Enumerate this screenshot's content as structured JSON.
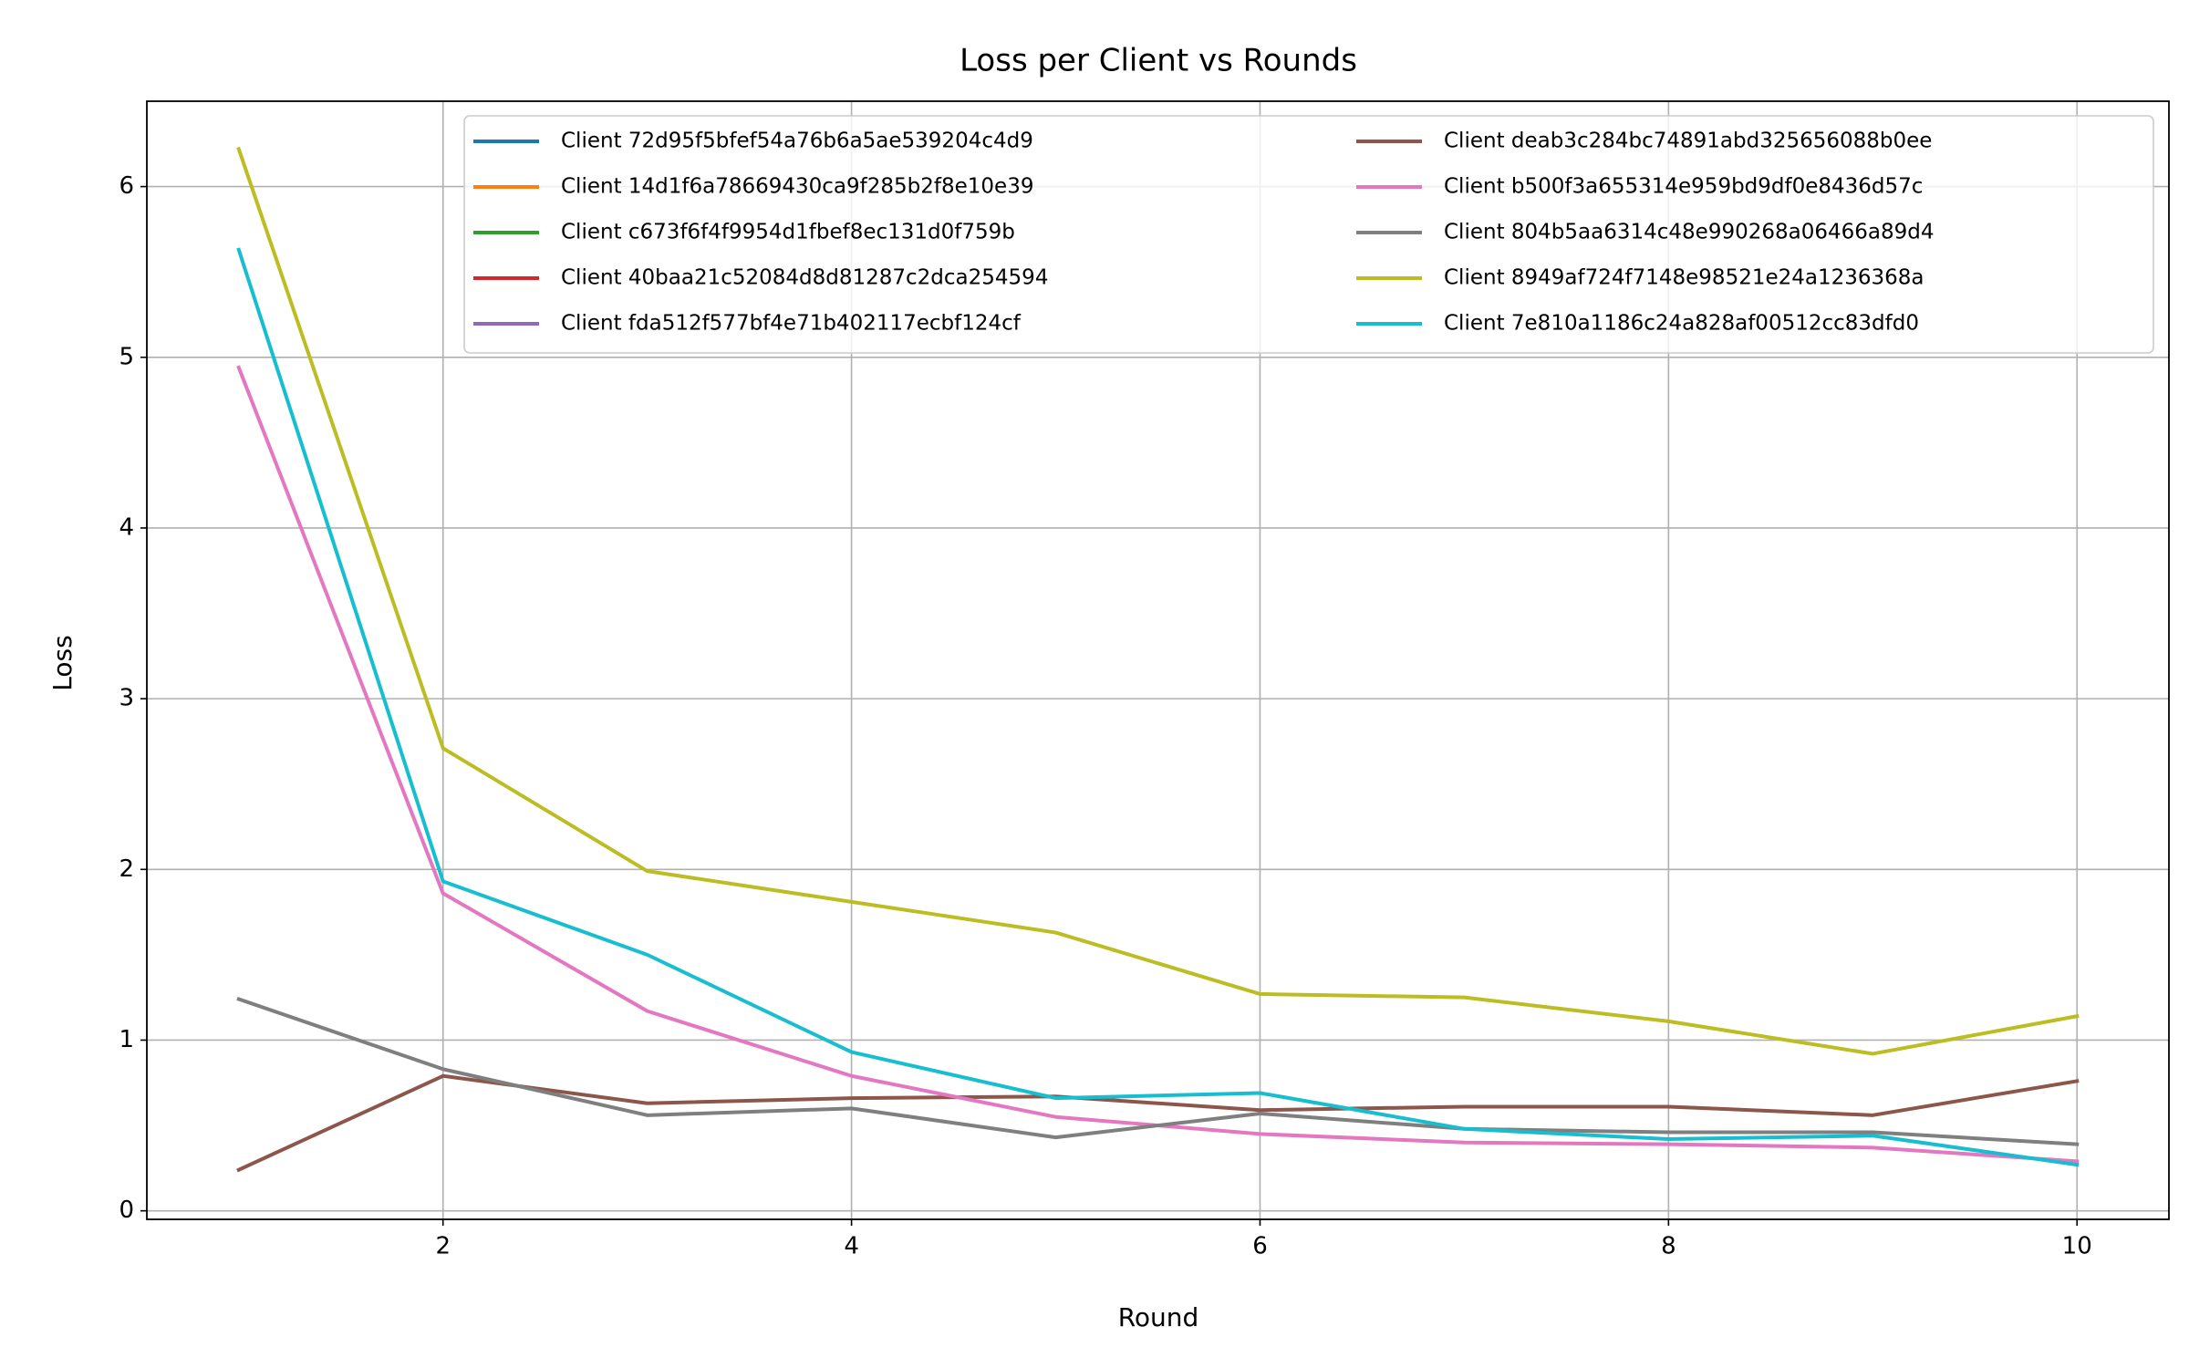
{
  "chart_data": {
    "type": "line",
    "title": "Loss per Client vs Rounds",
    "x_label": "Round",
    "y_label": "Loss",
    "x": [
      1,
      2,
      3,
      4,
      5,
      6,
      7,
      8,
      9,
      10
    ],
    "xlim": [
      0.55,
      10.45
    ],
    "xticks": [
      2,
      4,
      6,
      8,
      10
    ],
    "ylim": [
      -0.05,
      6.5
    ],
    "yticks": [
      0,
      1,
      2,
      3,
      4,
      5,
      6
    ],
    "grid": true,
    "legend": "upper right",
    "series": [
      {
        "name": "Client 72d95f5bfef54a76b6a5ae539204c4d9",
        "color": "#1f77b4",
        "values": [
          null,
          null,
          null,
          null,
          null,
          null,
          null,
          null,
          null,
          null
        ]
      },
      {
        "name": "Client 14d1f6a78669430ca9f285b2f8e10e39",
        "color": "#ff7f0e",
        "values": [
          null,
          null,
          null,
          null,
          null,
          null,
          null,
          null,
          null,
          null
        ]
      },
      {
        "name": "Client c673f6f4f9954d1fbef8ec131d0f759b",
        "color": "#2ca02c",
        "values": [
          null,
          null,
          null,
          null,
          null,
          null,
          null,
          null,
          null,
          null
        ]
      },
      {
        "name": "Client 40baa21c52084d8d81287c2dca254594",
        "color": "#d62728",
        "values": [
          null,
          null,
          null,
          null,
          null,
          null,
          null,
          null,
          null,
          null
        ]
      },
      {
        "name": "Client fda512f577bf4e71b402117ecbf124cf",
        "color": "#9467bd",
        "values": [
          null,
          null,
          null,
          null,
          null,
          null,
          null,
          null,
          null,
          null
        ]
      },
      {
        "name": "Client deab3c284bc74891abd325656088b0ee",
        "color": "#8c564b",
        "values": [
          0.24,
          0.79,
          0.63,
          0.66,
          0.67,
          0.59,
          0.61,
          0.61,
          0.56,
          0.76
        ]
      },
      {
        "name": "Client b500f3a655314e959bd9df0e8436d57c",
        "color": "#e377c2",
        "values": [
          4.94,
          1.86,
          1.17,
          0.79,
          0.55,
          0.45,
          0.4,
          0.39,
          0.37,
          0.29
        ]
      },
      {
        "name": "Client 804b5aa6314c48e990268a06466a89d4",
        "color": "#7f7f7f",
        "values": [
          1.24,
          0.83,
          0.56,
          0.6,
          0.43,
          0.57,
          0.48,
          0.46,
          0.46,
          0.39
        ]
      },
      {
        "name": "Client 8949af724f7148e98521e24a1236368a",
        "color": "#bcbd22",
        "values": [
          6.22,
          2.71,
          1.99,
          1.81,
          1.63,
          1.27,
          1.25,
          1.11,
          0.92,
          1.14
        ]
      },
      {
        "name": "Client 7e810a1186c24a828af00512cc83dfd0",
        "color": "#17becf",
        "values": [
          5.63,
          1.93,
          1.5,
          0.93,
          0.66,
          0.69,
          0.48,
          0.42,
          0.44,
          0.27
        ]
      }
    ]
  }
}
